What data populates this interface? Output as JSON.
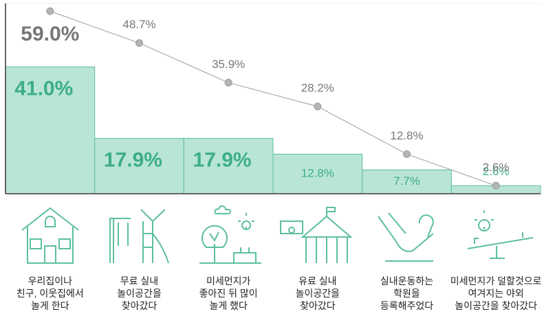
{
  "chart_data": {
    "type": "bar-line",
    "categories": [
      "우리집이나\n친구, 이웃집에서\n놀게 한다",
      "무료 실내\n놀이공간을\n찾아갔다",
      "미세먼지가\n좋아진 뒤 많이\n놀게 했다",
      "유료 실내\n놀이공간을\n찾아갔다",
      "실내운동하는\n학원을\n등록해주었다",
      "미세먼지가 덜할것으로\n여겨지는 야외\n놀이공간을 찾아갔다"
    ],
    "series": [
      {
        "kind": "bar",
        "color": "#b9e5d7",
        "values": [
          41.0,
          17.9,
          17.9,
          12.8,
          7.7,
          2.6
        ],
        "value_labels": [
          "41.0%",
          "17.9%",
          "17.9%",
          "12.8%",
          "7.7%",
          "2.6%"
        ]
      },
      {
        "kind": "line",
        "color": "#9a9a9a",
        "values": [
          59.0,
          48.7,
          35.9,
          28.2,
          12.8,
          2.6
        ],
        "value_labels": [
          "59.0%",
          "48.7%",
          "35.9%",
          "28.2%",
          "12.8%",
          "2.6%"
        ]
      }
    ],
    "ylim": [
      0,
      61.5
    ]
  }
}
